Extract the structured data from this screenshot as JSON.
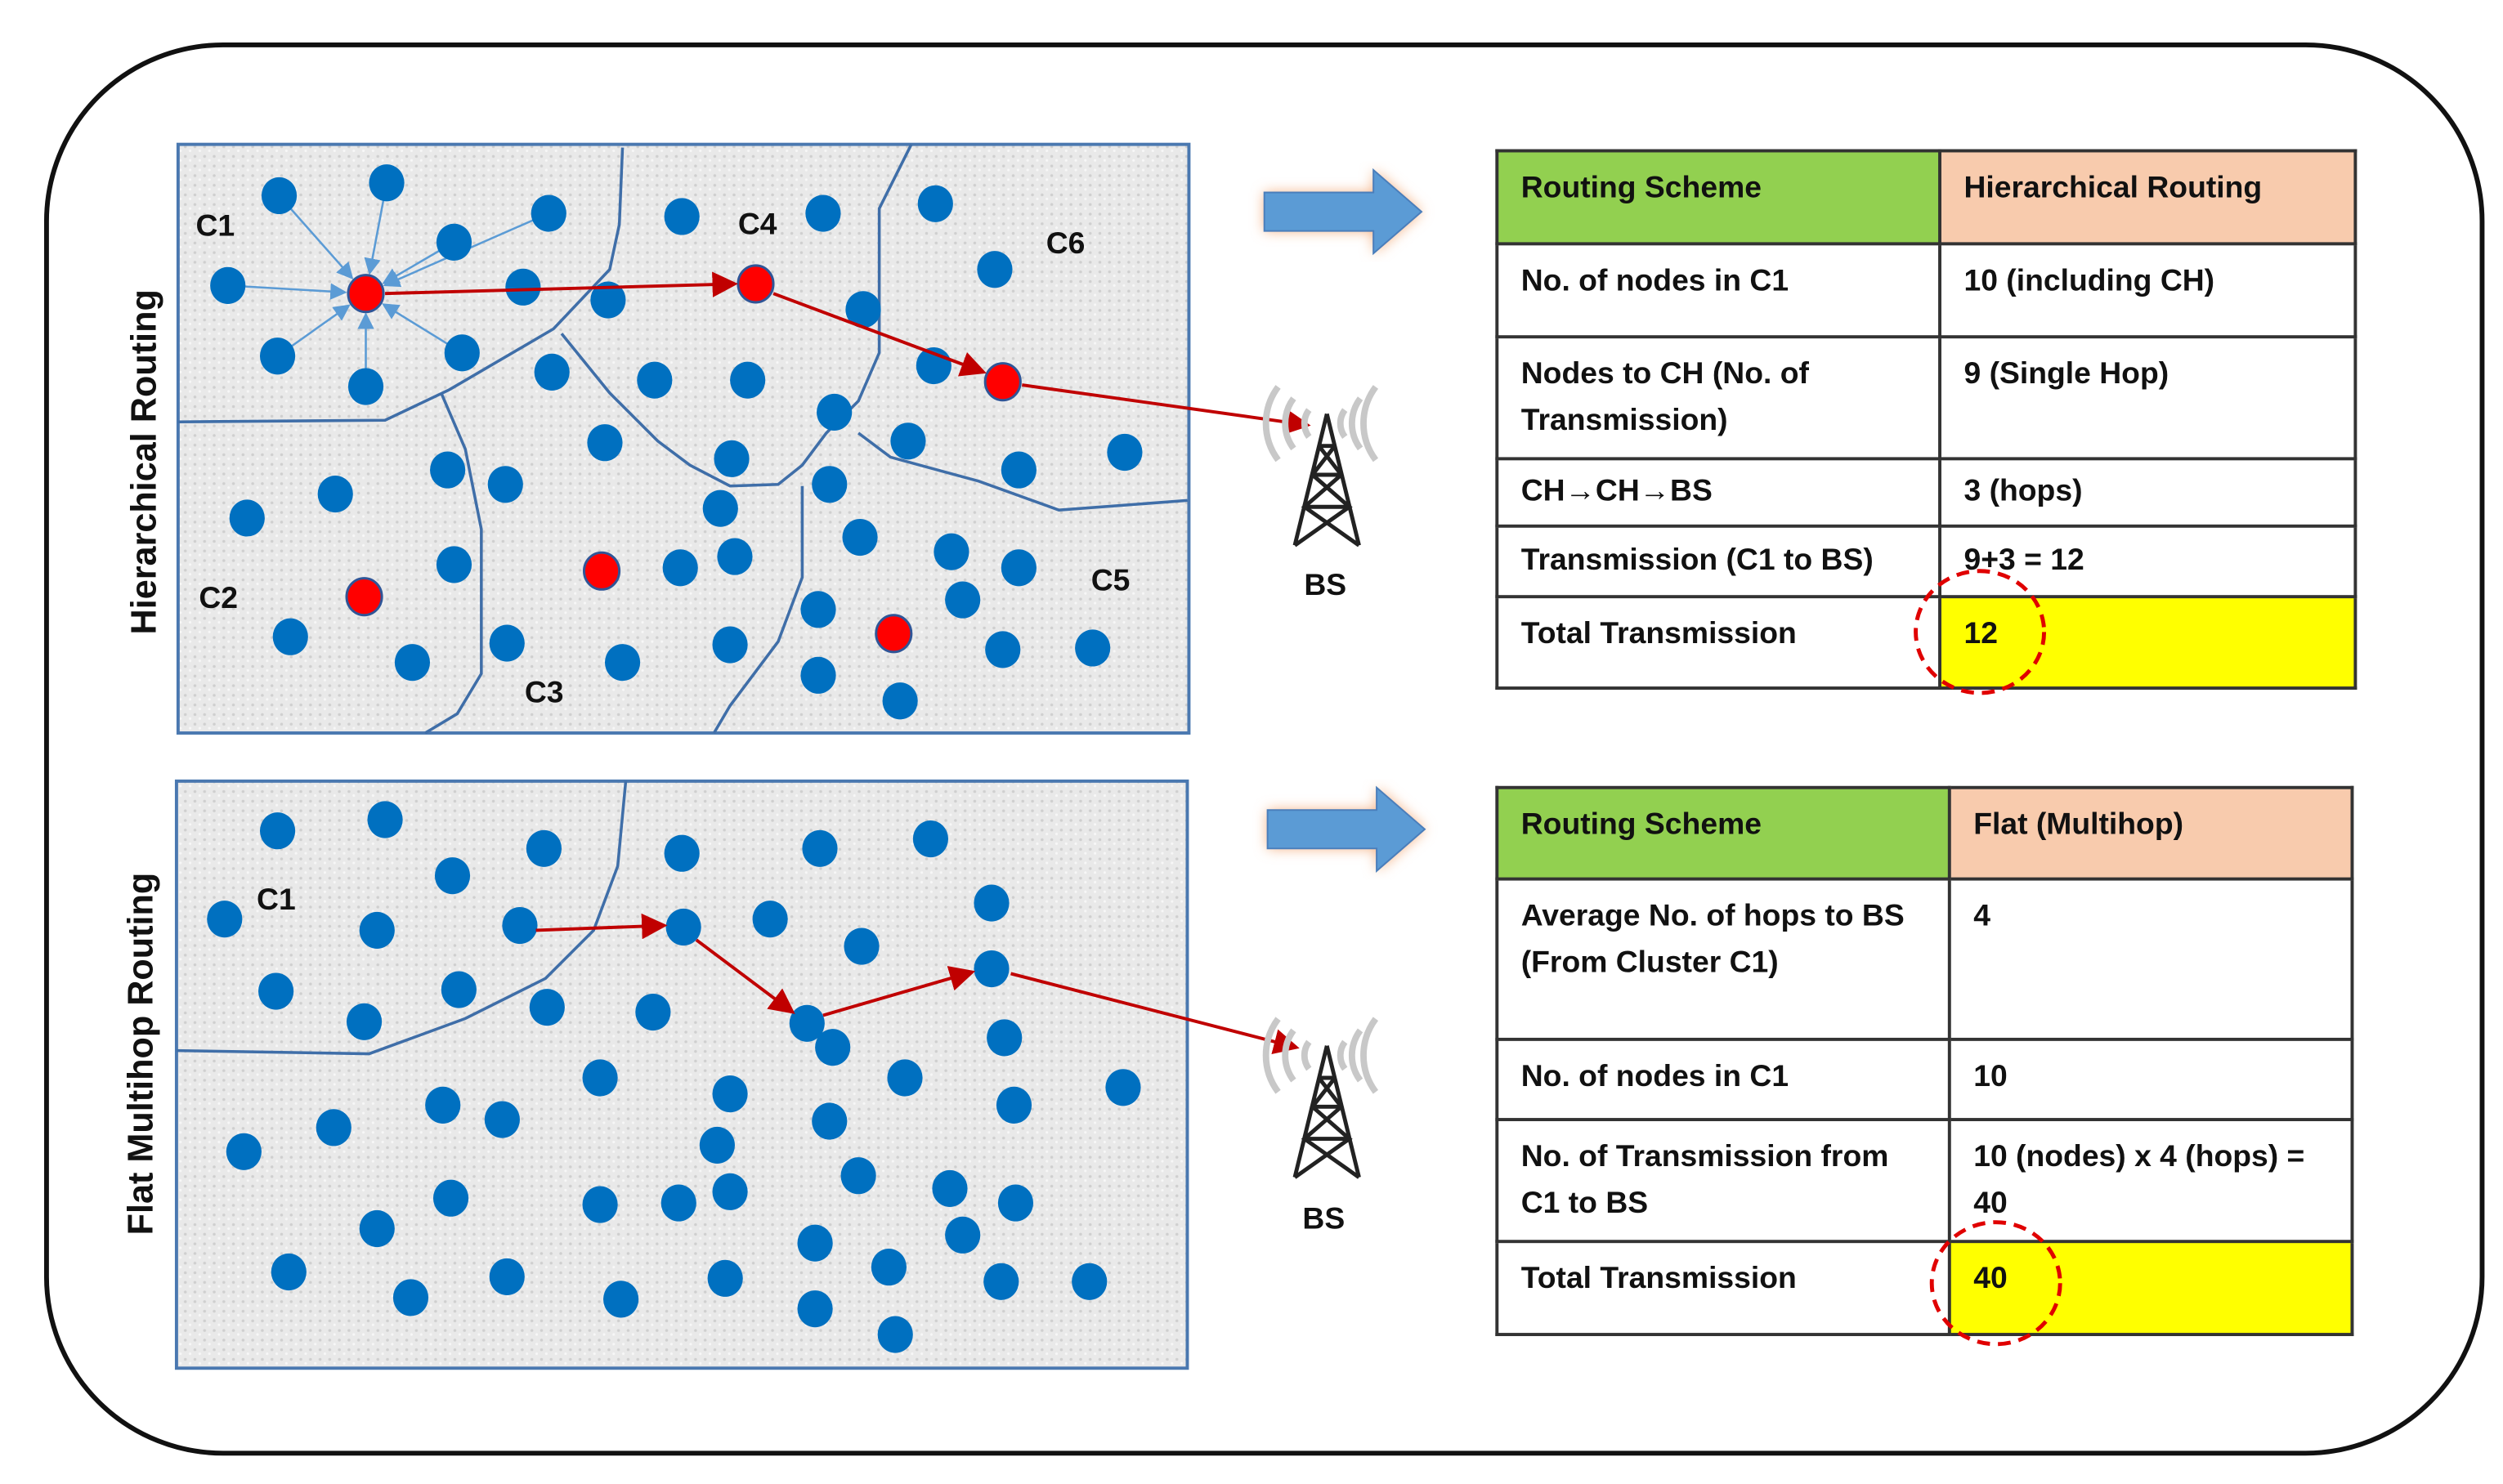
{
  "panels": {
    "top_label": "Hierarchical Routing",
    "bottom_label": "Flat Multihop Routing",
    "cluster_labels": [
      "C1",
      "C2",
      "C3",
      "C4",
      "C5",
      "C6"
    ],
    "bottom_cluster_label": "C1",
    "base_station_label": "BS"
  },
  "hierarchical_table": {
    "header": [
      "Routing Scheme",
      "Hierarchical Routing"
    ],
    "rows": [
      [
        "No. of nodes in C1",
        "10 (including CH)"
      ],
      [
        "Nodes to CH (No. of Transmission)",
        "9 (Single Hop)"
      ],
      [
        "CH→CH→BS",
        "3 (hops)"
      ],
      [
        "Transmission (C1 to BS)",
        "9+3 = 12"
      ],
      [
        "Total Transmission",
        "12"
      ]
    ]
  },
  "flat_table": {
    "header": [
      "Routing Scheme",
      "Flat (Multihop)"
    ],
    "rows": [
      [
        "Average No. of hops to BS (From Cluster C1)",
        "4"
      ],
      [
        "No. of nodes in C1",
        "10"
      ],
      [
        "No. of Transmission from C1 to BS",
        "10 (nodes) x 4 (hops) = 40"
      ],
      [
        "Total Transmission",
        "40"
      ]
    ]
  },
  "colors": {
    "node": "#0070c0",
    "cluster_head": "#ff0000",
    "route_arrow": "#c00000",
    "header_left": "#92d050",
    "header_right": "#f8cbad",
    "highlight": "#ffff00",
    "block_arrow": "#5b9bd5"
  },
  "icons": [
    "base-station-tower-icon",
    "right-block-arrow-icon"
  ]
}
